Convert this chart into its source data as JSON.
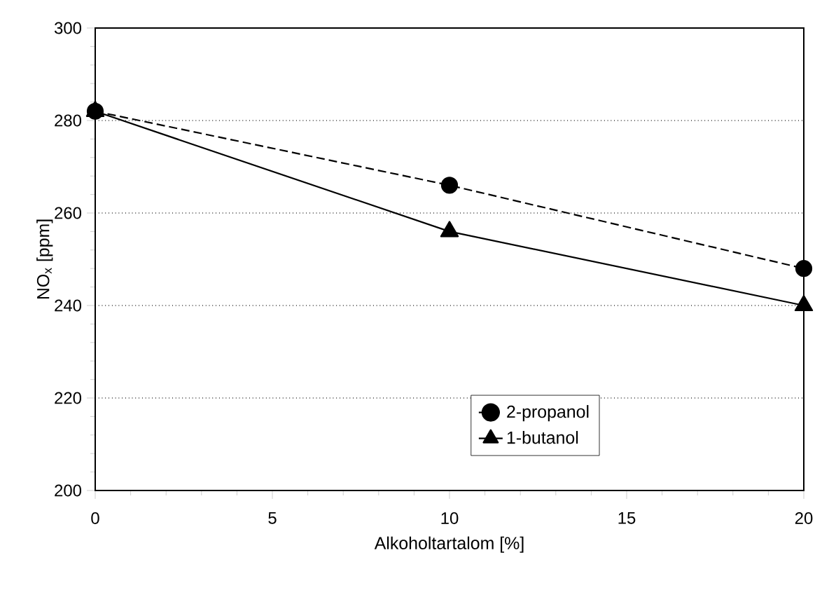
{
  "chart_data": {
    "type": "line",
    "xlabel": "Alkoholtartalom [%]",
    "ylabel": "NO$_{x}$ [ppm]",
    "x": [
      0,
      10,
      20
    ],
    "series": [
      {
        "name": "2-propanol",
        "color": "#000000",
        "values": [
          282,
          266,
          248
        ],
        "marker": "circle",
        "line_style": "dashed"
      },
      {
        "name": "1-butanol",
        "color": "#000000",
        "values": [
          282,
          256,
          240
        ],
        "marker": "triangle",
        "line_style": "solid"
      }
    ],
    "xlim": [
      0,
      20
    ],
    "ylim": [
      200,
      300
    ],
    "xticks": [
      0,
      5,
      10,
      15,
      20
    ],
    "yticks": [
      200,
      220,
      240,
      260,
      280,
      300
    ],
    "grid": "y",
    "legend": "bottom right"
  }
}
